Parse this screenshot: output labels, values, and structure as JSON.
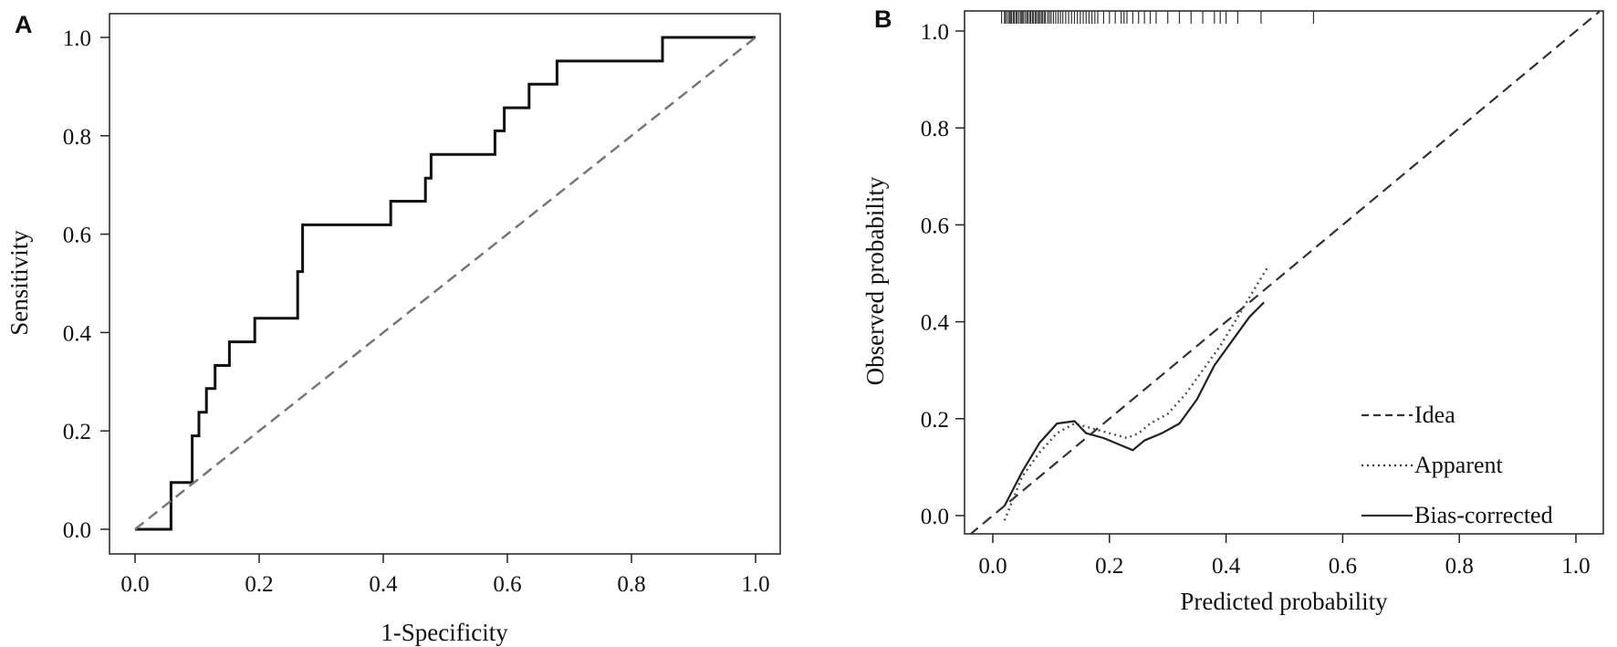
{
  "chart_data": [
    {
      "panel": "A",
      "type": "line",
      "title": "",
      "xlabel": "1-Specificity",
      "ylabel": "Sensitivity",
      "xlim": [
        0,
        1
      ],
      "ylim": [
        0,
        1
      ],
      "xticks": [
        "0.0",
        "0.2",
        "0.4",
        "0.6",
        "0.8",
        "1.0"
      ],
      "yticks": [
        "0.0",
        "0.2",
        "0.4",
        "0.6",
        "0.8",
        "1.0"
      ],
      "grid": false,
      "series": [
        {
          "style": "solid-step",
          "color": "#111111",
          "x": [
            0,
            0.058,
            0.058,
            0.092,
            0.092,
            0.103,
            0.103,
            0.115,
            0.115,
            0.129,
            0.129,
            0.152,
            0.152,
            0.193,
            0.193,
            0.262,
            0.262,
            0.27,
            0.27,
            0.412,
            0.412,
            0.468,
            0.468,
            0.477,
            0.477,
            0.58,
            0.58,
            0.595,
            0.595,
            0.635,
            0.635,
            0.68,
            0.68,
            0.85,
            0.85,
            1.0
          ],
          "y": [
            0,
            0,
            0.095,
            0.095,
            0.19,
            0.19,
            0.238,
            0.238,
            0.286,
            0.286,
            0.333,
            0.333,
            0.381,
            0.381,
            0.429,
            0.429,
            0.524,
            0.524,
            0.619,
            0.619,
            0.667,
            0.667,
            0.714,
            0.714,
            0.762,
            0.762,
            0.81,
            0.81,
            0.857,
            0.857,
            0.905,
            0.905,
            0.952,
            0.952,
            1.0,
            1.0
          ]
        },
        {
          "style": "dashed",
          "color": "#777777",
          "x": [
            0,
            1
          ],
          "y": [
            0,
            1
          ]
        }
      ]
    },
    {
      "panel": "B",
      "type": "line",
      "title": "",
      "xlabel": "Predicted probability",
      "ylabel": "Observed probability",
      "xlim": [
        -0.04,
        1.04
      ],
      "ylim": [
        -0.04,
        1.04
      ],
      "xticks": [
        "0.0",
        "0.2",
        "0.4",
        "0.6",
        "0.8",
        "1.0"
      ],
      "yticks": [
        "0.0",
        "0.2",
        "0.4",
        "0.6",
        "0.8",
        "1.0"
      ],
      "grid": false,
      "legend": {
        "position": "bottom-right",
        "entries": [
          {
            "label": "Idea",
            "style": "dashed"
          },
          {
            "label": "Apparent",
            "style": "dotted"
          },
          {
            "label": "Bias-corrected",
            "style": "solid"
          }
        ]
      },
      "series": [
        {
          "style": "dashed",
          "color": "#333333",
          "x": [
            -0.04,
            1.04
          ],
          "y": [
            -0.04,
            1.04
          ]
        },
        {
          "style": "dotted",
          "color": "#555555",
          "x": [
            0.02,
            0.05,
            0.08,
            0.11,
            0.14,
            0.17,
            0.2,
            0.23,
            0.25,
            0.27,
            0.3,
            0.33,
            0.36,
            0.39,
            0.42,
            0.45,
            0.47
          ],
          "y": [
            -0.01,
            0.08,
            0.13,
            0.17,
            0.19,
            0.18,
            0.17,
            0.16,
            0.17,
            0.19,
            0.21,
            0.25,
            0.3,
            0.35,
            0.41,
            0.47,
            0.51
          ]
        },
        {
          "style": "solid",
          "color": "#222222",
          "x": [
            0.02,
            0.05,
            0.08,
            0.11,
            0.14,
            0.16,
            0.19,
            0.22,
            0.24,
            0.26,
            0.29,
            0.32,
            0.35,
            0.38,
            0.41,
            0.44,
            0.465
          ],
          "y": [
            0.02,
            0.09,
            0.15,
            0.19,
            0.195,
            0.17,
            0.16,
            0.145,
            0.135,
            0.155,
            0.17,
            0.19,
            0.24,
            0.31,
            0.36,
            0.41,
            0.44
          ]
        }
      ],
      "rug": [
        0.015,
        0.02,
        0.022,
        0.025,
        0.028,
        0.03,
        0.032,
        0.035,
        0.037,
        0.04,
        0.042,
        0.045,
        0.048,
        0.05,
        0.052,
        0.055,
        0.058,
        0.06,
        0.063,
        0.065,
        0.068,
        0.07,
        0.073,
        0.075,
        0.078,
        0.08,
        0.083,
        0.085,
        0.088,
        0.09,
        0.094,
        0.097,
        0.1,
        0.104,
        0.108,
        0.112,
        0.116,
        0.12,
        0.125,
        0.13,
        0.135,
        0.14,
        0.145,
        0.15,
        0.155,
        0.16,
        0.165,
        0.17,
        0.175,
        0.18,
        0.19,
        0.2,
        0.21,
        0.22,
        0.225,
        0.23,
        0.24,
        0.25,
        0.26,
        0.27,
        0.28,
        0.3,
        0.32,
        0.34,
        0.36,
        0.38,
        0.39,
        0.4,
        0.42,
        0.46,
        0.55
      ]
    }
  ],
  "labels": {
    "panel_a": "A",
    "panel_b": "B"
  }
}
